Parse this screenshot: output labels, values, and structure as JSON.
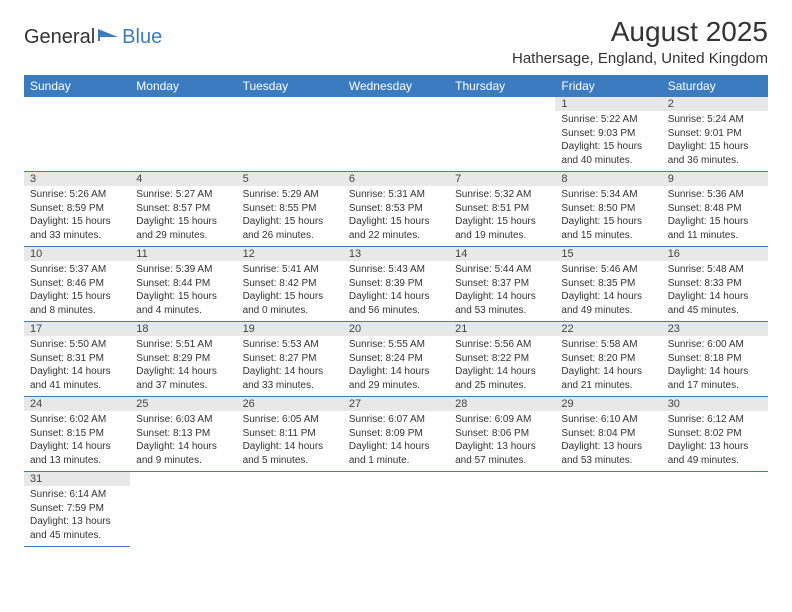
{
  "logo": {
    "text1": "General",
    "text2": "Blue"
  },
  "title": "August 2025",
  "location": "Hathersage, England, United Kingdom",
  "colors": {
    "header_bg": "#3b7bbf",
    "daynum_bg": "#e8e8e8",
    "border": "#3b7bbf"
  },
  "dayNames": [
    "Sunday",
    "Monday",
    "Tuesday",
    "Wednesday",
    "Thursday",
    "Friday",
    "Saturday"
  ],
  "weeks": [
    [
      null,
      null,
      null,
      null,
      null,
      {
        "n": "1",
        "sr": "Sunrise: 5:22 AM",
        "ss": "Sunset: 9:03 PM",
        "dl": "Daylight: 15 hours and 40 minutes."
      },
      {
        "n": "2",
        "sr": "Sunrise: 5:24 AM",
        "ss": "Sunset: 9:01 PM",
        "dl": "Daylight: 15 hours and 36 minutes."
      }
    ],
    [
      {
        "n": "3",
        "sr": "Sunrise: 5:26 AM",
        "ss": "Sunset: 8:59 PM",
        "dl": "Daylight: 15 hours and 33 minutes."
      },
      {
        "n": "4",
        "sr": "Sunrise: 5:27 AM",
        "ss": "Sunset: 8:57 PM",
        "dl": "Daylight: 15 hours and 29 minutes."
      },
      {
        "n": "5",
        "sr": "Sunrise: 5:29 AM",
        "ss": "Sunset: 8:55 PM",
        "dl": "Daylight: 15 hours and 26 minutes."
      },
      {
        "n": "6",
        "sr": "Sunrise: 5:31 AM",
        "ss": "Sunset: 8:53 PM",
        "dl": "Daylight: 15 hours and 22 minutes."
      },
      {
        "n": "7",
        "sr": "Sunrise: 5:32 AM",
        "ss": "Sunset: 8:51 PM",
        "dl": "Daylight: 15 hours and 19 minutes."
      },
      {
        "n": "8",
        "sr": "Sunrise: 5:34 AM",
        "ss": "Sunset: 8:50 PM",
        "dl": "Daylight: 15 hours and 15 minutes."
      },
      {
        "n": "9",
        "sr": "Sunrise: 5:36 AM",
        "ss": "Sunset: 8:48 PM",
        "dl": "Daylight: 15 hours and 11 minutes."
      }
    ],
    [
      {
        "n": "10",
        "sr": "Sunrise: 5:37 AM",
        "ss": "Sunset: 8:46 PM",
        "dl": "Daylight: 15 hours and 8 minutes."
      },
      {
        "n": "11",
        "sr": "Sunrise: 5:39 AM",
        "ss": "Sunset: 8:44 PM",
        "dl": "Daylight: 15 hours and 4 minutes."
      },
      {
        "n": "12",
        "sr": "Sunrise: 5:41 AM",
        "ss": "Sunset: 8:42 PM",
        "dl": "Daylight: 15 hours and 0 minutes."
      },
      {
        "n": "13",
        "sr": "Sunrise: 5:43 AM",
        "ss": "Sunset: 8:39 PM",
        "dl": "Daylight: 14 hours and 56 minutes."
      },
      {
        "n": "14",
        "sr": "Sunrise: 5:44 AM",
        "ss": "Sunset: 8:37 PM",
        "dl": "Daylight: 14 hours and 53 minutes."
      },
      {
        "n": "15",
        "sr": "Sunrise: 5:46 AM",
        "ss": "Sunset: 8:35 PM",
        "dl": "Daylight: 14 hours and 49 minutes."
      },
      {
        "n": "16",
        "sr": "Sunrise: 5:48 AM",
        "ss": "Sunset: 8:33 PM",
        "dl": "Daylight: 14 hours and 45 minutes."
      }
    ],
    [
      {
        "n": "17",
        "sr": "Sunrise: 5:50 AM",
        "ss": "Sunset: 8:31 PM",
        "dl": "Daylight: 14 hours and 41 minutes."
      },
      {
        "n": "18",
        "sr": "Sunrise: 5:51 AM",
        "ss": "Sunset: 8:29 PM",
        "dl": "Daylight: 14 hours and 37 minutes."
      },
      {
        "n": "19",
        "sr": "Sunrise: 5:53 AM",
        "ss": "Sunset: 8:27 PM",
        "dl": "Daylight: 14 hours and 33 minutes."
      },
      {
        "n": "20",
        "sr": "Sunrise: 5:55 AM",
        "ss": "Sunset: 8:24 PM",
        "dl": "Daylight: 14 hours and 29 minutes."
      },
      {
        "n": "21",
        "sr": "Sunrise: 5:56 AM",
        "ss": "Sunset: 8:22 PM",
        "dl": "Daylight: 14 hours and 25 minutes."
      },
      {
        "n": "22",
        "sr": "Sunrise: 5:58 AM",
        "ss": "Sunset: 8:20 PM",
        "dl": "Daylight: 14 hours and 21 minutes."
      },
      {
        "n": "23",
        "sr": "Sunrise: 6:00 AM",
        "ss": "Sunset: 8:18 PM",
        "dl": "Daylight: 14 hours and 17 minutes."
      }
    ],
    [
      {
        "n": "24",
        "sr": "Sunrise: 6:02 AM",
        "ss": "Sunset: 8:15 PM",
        "dl": "Daylight: 14 hours and 13 minutes."
      },
      {
        "n": "25",
        "sr": "Sunrise: 6:03 AM",
        "ss": "Sunset: 8:13 PM",
        "dl": "Daylight: 14 hours and 9 minutes."
      },
      {
        "n": "26",
        "sr": "Sunrise: 6:05 AM",
        "ss": "Sunset: 8:11 PM",
        "dl": "Daylight: 14 hours and 5 minutes."
      },
      {
        "n": "27",
        "sr": "Sunrise: 6:07 AM",
        "ss": "Sunset: 8:09 PM",
        "dl": "Daylight: 14 hours and 1 minute."
      },
      {
        "n": "28",
        "sr": "Sunrise: 6:09 AM",
        "ss": "Sunset: 8:06 PM",
        "dl": "Daylight: 13 hours and 57 minutes."
      },
      {
        "n": "29",
        "sr": "Sunrise: 6:10 AM",
        "ss": "Sunset: 8:04 PM",
        "dl": "Daylight: 13 hours and 53 minutes."
      },
      {
        "n": "30",
        "sr": "Sunrise: 6:12 AM",
        "ss": "Sunset: 8:02 PM",
        "dl": "Daylight: 13 hours and 49 minutes."
      }
    ],
    [
      {
        "n": "31",
        "sr": "Sunrise: 6:14 AM",
        "ss": "Sunset: 7:59 PM",
        "dl": "Daylight: 13 hours and 45 minutes."
      },
      null,
      null,
      null,
      null,
      null,
      null
    ]
  ]
}
